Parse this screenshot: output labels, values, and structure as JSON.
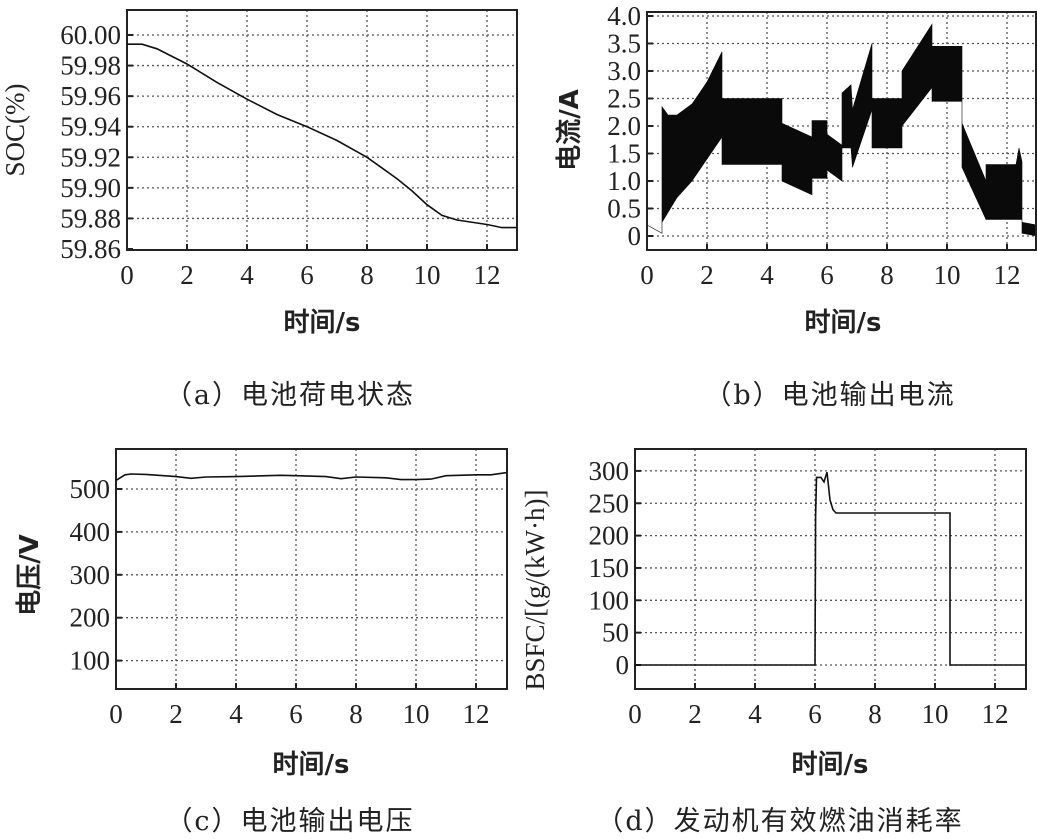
{
  "figure": {
    "panels": [
      {
        "id": "a",
        "caption": "（a）电池荷电状态"
      },
      {
        "id": "b",
        "caption": "（b）电池输出电流"
      },
      {
        "id": "c",
        "caption": "（c）电池输出电压"
      },
      {
        "id": "d",
        "caption": "（d）发动机有效燃油消耗率"
      }
    ]
  },
  "chart_data": [
    {
      "id": "a",
      "type": "line",
      "title": "（a）电池荷电状态",
      "xlabel": "时间/s",
      "ylabel": "SOC(%)",
      "xlim": [
        0,
        13
      ],
      "ylim": [
        59.86,
        60.005
      ],
      "xticks": [
        "0",
        "2",
        "4",
        "6",
        "8",
        "10",
        "12"
      ],
      "yticks": [
        "60.00",
        "59.98",
        "59.96",
        "59.94",
        "59.92",
        "59.90",
        "59.88",
        "59.86"
      ],
      "grid": true,
      "series": [
        {
          "name": "SOC",
          "x": [
            0,
            0.5,
            1,
            2,
            3,
            4,
            5,
            6,
            7,
            8,
            9,
            9.5,
            10,
            10.5,
            11,
            12,
            12.5,
            13
          ],
          "y": [
            59.994,
            59.994,
            59.991,
            59.981,
            59.969,
            59.958,
            59.948,
            59.94,
            59.931,
            59.92,
            59.906,
            59.898,
            59.889,
            59.882,
            59.879,
            59.876,
            59.874,
            59.874
          ]
        }
      ]
    },
    {
      "id": "b",
      "type": "area",
      "title": "（b）电池输出电流",
      "xlabel": "时间/s",
      "ylabel": "电流/A",
      "xlim": [
        0,
        13
      ],
      "ylim": [
        -0.1,
        4.0
      ],
      "xticks": [
        "0",
        "2",
        "4",
        "6",
        "8",
        "10",
        "12"
      ],
      "yticks": [
        "4.0",
        "3.5",
        "3.0",
        "2.5",
        "2.0",
        "1.5",
        "1.0",
        "0.5",
        "0"
      ],
      "grid": true,
      "series": [
        {
          "name": "upper envelope",
          "x": [
            0,
            0.5,
            0.5,
            0.7,
            1.0,
            1.5,
            2.0,
            2.5,
            2.5,
            4.5,
            4.5,
            5.5,
            5.5,
            6.0,
            6.0,
            6.5,
            6.5,
            6.8,
            6.85,
            7.5,
            7.5,
            8.5,
            8.5,
            9.5,
            9.5,
            10.5,
            10.5,
            11.3,
            11.3,
            12.3,
            12.4,
            12.5,
            12.5,
            13
          ],
          "y": [
            0.2,
            0.05,
            2.35,
            2.2,
            2.2,
            2.4,
            2.8,
            3.35,
            2.5,
            2.5,
            2.05,
            1.8,
            2.1,
            2.1,
            1.85,
            1.65,
            2.6,
            2.75,
            2.3,
            3.5,
            2.5,
            2.5,
            3.0,
            3.85,
            3.45,
            3.45,
            2.05,
            1.0,
            1.3,
            1.3,
            1.6,
            1.35,
            0.25,
            0.2
          ]
        },
        {
          "name": "lower envelope",
          "x": [
            0,
            0.5,
            0.5,
            1.0,
            1.5,
            2.0,
            2.5,
            2.5,
            4.5,
            4.5,
            5.5,
            5.5,
            6.0,
            6.0,
            6.5,
            6.5,
            6.8,
            6.85,
            7.5,
            7.5,
            8.5,
            8.5,
            9.5,
            9.5,
            10.5,
            10.5,
            11.3,
            12.5,
            12.5,
            13
          ],
          "y": [
            0.2,
            0.05,
            0.25,
            0.7,
            1.0,
            1.4,
            1.8,
            1.3,
            1.3,
            1.0,
            0.75,
            1.05,
            1.05,
            1.2,
            1.0,
            1.6,
            1.6,
            1.25,
            2.3,
            1.6,
            1.6,
            2.0,
            2.7,
            2.45,
            2.45,
            1.25,
            0.3,
            0.3,
            0.05,
            0.0
          ]
        }
      ]
    },
    {
      "id": "c",
      "type": "line",
      "title": "（c）电池输出电压",
      "xlabel": "时间/s",
      "ylabel": "电压/V",
      "xlim": [
        0,
        13
      ],
      "ylim": [
        35,
        595
      ],
      "xticks": [
        "0",
        "2",
        "4",
        "6",
        "8",
        "10",
        "12"
      ],
      "yticks": [
        "500",
        "400",
        "300",
        "200",
        "100"
      ],
      "grid": true,
      "series": [
        {
          "name": "Voltage",
          "x": [
            0,
            0.3,
            0.5,
            1,
            2,
            2.5,
            3,
            4,
            5,
            5.5,
            6,
            7,
            7.5,
            8,
            9,
            9.5,
            10,
            10.5,
            11,
            12,
            12.5,
            13
          ],
          "y": [
            520,
            533,
            535,
            534,
            529,
            525,
            528,
            529,
            531,
            532,
            531,
            529,
            524,
            528,
            526,
            522,
            522,
            523,
            531,
            533,
            533,
            538
          ]
        }
      ]
    },
    {
      "id": "d",
      "type": "line",
      "title": "（d）发动机有效燃油消耗率",
      "xlabel": "时间/s",
      "ylabel": "BSFC/[(g/(kW·h)]",
      "xlim": [
        0,
        13
      ],
      "ylim": [
        -38,
        335
      ],
      "xticks": [
        "0",
        "2",
        "4",
        "6",
        "8",
        "10",
        "12"
      ],
      "yticks": [
        "300",
        "250",
        "200",
        "150",
        "100",
        "50",
        "0"
      ],
      "grid": true,
      "series": [
        {
          "name": "BSFC",
          "x": [
            0,
            6.0,
            6.02,
            6.05,
            6.2,
            6.3,
            6.4,
            6.5,
            6.6,
            6.7,
            10.5,
            10.5,
            13
          ],
          "y": [
            0,
            0,
            230,
            290,
            290,
            283,
            298,
            255,
            240,
            235,
            235,
            0,
            0
          ]
        }
      ]
    }
  ],
  "labels": {
    "a": {
      "ylabel": "SOC(%)",
      "xlabel": "时间/s",
      "caption": "（a）电池荷电状态",
      "yticks": [
        "60.00",
        "59.98",
        "59.96",
        "59.94",
        "59.92",
        "59.90",
        "59.88",
        "59.86"
      ]
    },
    "b": {
      "ylabel": "电流/A",
      "xlabel": "时间/s",
      "caption": "（b）电池输出电流",
      "yticks": [
        "4.0",
        "3.5",
        "3.0",
        "2.5",
        "2.0",
        "1.5",
        "1.0",
        "0.5",
        "0"
      ]
    },
    "c": {
      "ylabel": "电压/V",
      "xlabel": "时间/s",
      "caption": "（c）电池输出电压",
      "yticks": [
        "500",
        "400",
        "300",
        "200",
        "100"
      ]
    },
    "d": {
      "ylabel": "BSFC/[(g/(kW·h)]",
      "xlabel": "时间/s",
      "caption": "（d）发动机有效燃油消耗率",
      "yticks": [
        "300",
        "250",
        "200",
        "150",
        "100",
        "50",
        "0"
      ]
    },
    "xticks": [
      "0",
      "2",
      "4",
      "6",
      "8",
      "10",
      "12"
    ]
  }
}
